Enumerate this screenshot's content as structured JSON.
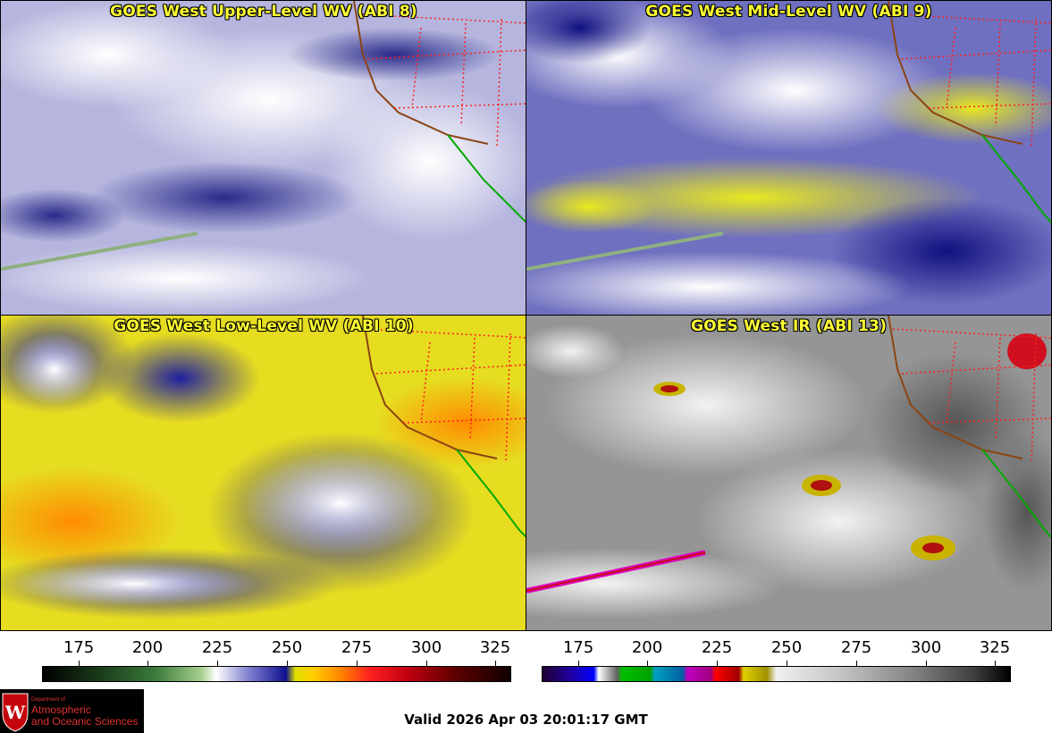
{
  "panels": [
    {
      "title": "GOES West Upper-Level WV (ABI 8)",
      "palette": "wv"
    },
    {
      "title": "GOES West Mid-Level WV (ABI 9)",
      "palette": "wv"
    },
    {
      "title": "GOES West Low-Level WV (ABI 10)",
      "palette": "wv"
    },
    {
      "title": "GOES West IR (ABI 13)",
      "palette": "ir"
    }
  ],
  "colorbar_wv": {
    "ticks": [
      "175",
      "200",
      "225",
      "250",
      "275",
      "300",
      "325"
    ]
  },
  "colorbar_ir": {
    "ticks": [
      "175",
      "200",
      "225",
      "250",
      "275",
      "300",
      "325"
    ]
  },
  "logo": {
    "line1": "Department of",
    "line2": "Atmospheric",
    "line3": "and Oceanic Sciences"
  },
  "valid_time": "Valid 2026 Apr 03 20:01:17 GMT",
  "colors": {
    "title_yellow": "#ffff33",
    "state_borders": "#ff2020",
    "coastline": "#8b4513",
    "mexico_coast": "#00aa00",
    "logo_bg": "#000000",
    "logo_text": "#e03030"
  }
}
